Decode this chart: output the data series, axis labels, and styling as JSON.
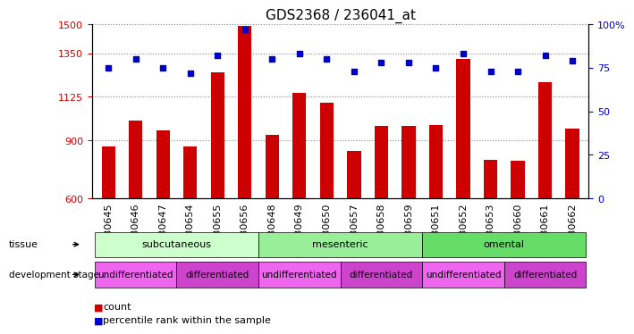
{
  "title": "GDS2368 / 236041_at",
  "samples": [
    "GSM30645",
    "GSM30646",
    "GSM30647",
    "GSM30654",
    "GSM30655",
    "GSM30656",
    "GSM30648",
    "GSM30649",
    "GSM30650",
    "GSM30657",
    "GSM30658",
    "GSM30659",
    "GSM30651",
    "GSM30652",
    "GSM30653",
    "GSM30660",
    "GSM30661",
    "GSM30662"
  ],
  "counts": [
    870,
    1000,
    950,
    870,
    1250,
    1490,
    930,
    1145,
    1095,
    845,
    975,
    975,
    980,
    1320,
    800,
    795,
    1200,
    960
  ],
  "percentiles": [
    75,
    80,
    75,
    72,
    82,
    97,
    80,
    83,
    80,
    73,
    78,
    78,
    75,
    83,
    73,
    73,
    82,
    79
  ],
  "ylim_left": [
    600,
    1500
  ],
  "ylim_right": [
    0,
    100
  ],
  "yticks_left": [
    600,
    900,
    1125,
    1350,
    1500
  ],
  "yticks_right": [
    0,
    25,
    50,
    75,
    100
  ],
  "bar_color": "#cc0000",
  "dot_color": "#0000cc",
  "tissue_groups": [
    {
      "label": "subcutaneous",
      "start": 0,
      "end": 5,
      "color": "#ccffcc"
    },
    {
      "label": "mesenteric",
      "start": 6,
      "end": 11,
      "color": "#99ee99"
    },
    {
      "label": "omental",
      "start": 12,
      "end": 17,
      "color": "#66dd66"
    }
  ],
  "dev_stage_groups": [
    {
      "label": "undifferentiated",
      "start": 0,
      "end": 2,
      "color": "#ee66ee"
    },
    {
      "label": "differentiated",
      "start": 3,
      "end": 5,
      "color": "#cc44cc"
    },
    {
      "label": "undifferentiated",
      "start": 6,
      "end": 8,
      "color": "#ee66ee"
    },
    {
      "label": "differentiated",
      "start": 9,
      "end": 11,
      "color": "#cc44cc"
    },
    {
      "label": "undifferentiated",
      "start": 12,
      "end": 14,
      "color": "#ee66ee"
    },
    {
      "label": "differentiated",
      "start": 15,
      "end": 17,
      "color": "#cc44cc"
    }
  ],
  "legend_count_color": "#cc0000",
  "legend_dot_color": "#0000cc",
  "bg_color": "#ffffff",
  "grid_color": "#888888",
  "title_fontsize": 11,
  "tick_fontsize": 8,
  "label_fontsize": 8
}
